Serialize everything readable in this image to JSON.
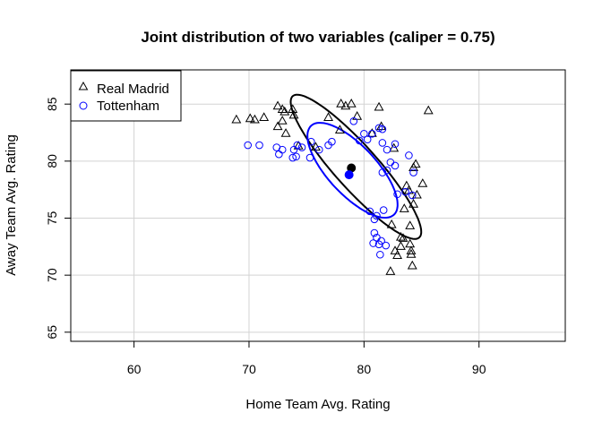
{
  "chart_data": {
    "type": "scatter",
    "title": "Joint distribution of two variables (caliper = 0.75)",
    "xlabel": "Home Team Avg. Rating",
    "ylabel": "Away Team Avg. Rating",
    "xlim": [
      54.5,
      97.5
    ],
    "ylim": [
      64.2,
      88.0
    ],
    "xticks": [
      60,
      70,
      80,
      90
    ],
    "yticks": [
      65,
      70,
      75,
      80,
      85
    ],
    "grid": true,
    "legend_position": "top-left",
    "series": [
      {
        "name": "Real Madrid",
        "marker": "triangle",
        "color": "#000000",
        "points": [
          [
            68.9,
            83.6
          ],
          [
            70.1,
            83.7
          ],
          [
            70.5,
            83.6
          ],
          [
            71.3,
            83.8
          ],
          [
            72.5,
            84.8
          ],
          [
            72.9,
            84.5
          ],
          [
            73.1,
            84.3
          ],
          [
            72.5,
            83.0
          ],
          [
            72.9,
            83.5
          ],
          [
            73.2,
            82.4
          ],
          [
            73.8,
            84.5
          ],
          [
            73.9,
            84.0
          ],
          [
            74.3,
            81.3
          ],
          [
            75.8,
            81.2
          ],
          [
            76.9,
            83.8
          ],
          [
            77.9,
            82.7
          ],
          [
            78.0,
            85.0
          ],
          [
            78.4,
            84.8
          ],
          [
            78.9,
            85.0
          ],
          [
            79.4,
            83.9
          ],
          [
            80.7,
            82.4
          ],
          [
            81.3,
            84.7
          ],
          [
            81.5,
            83.0
          ],
          [
            82.6,
            81.1
          ],
          [
            82.4,
            74.4
          ],
          [
            82.9,
            71.7
          ],
          [
            83.2,
            73.3
          ],
          [
            83.5,
            75.8
          ],
          [
            83.7,
            77.8
          ],
          [
            83.9,
            77.4
          ],
          [
            84.0,
            72.7
          ],
          [
            84.1,
            71.8
          ],
          [
            84.0,
            74.3
          ],
          [
            84.2,
            70.8
          ],
          [
            84.3,
            79.4
          ],
          [
            84.5,
            79.7
          ],
          [
            84.6,
            77.0
          ],
          [
            85.1,
            78.0
          ],
          [
            85.6,
            84.4
          ],
          [
            82.3,
            70.3
          ],
          [
            84.3,
            76.2
          ],
          [
            83.4,
            73.2
          ],
          [
            84.1,
            72.1
          ],
          [
            82.7,
            72.1
          ],
          [
            83.2,
            72.5
          ]
        ]
      },
      {
        "name": "Tottenham",
        "marker": "circle",
        "color": "#0000ff",
        "points": [
          [
            69.9,
            81.4
          ],
          [
            70.9,
            81.4
          ],
          [
            72.4,
            81.2
          ],
          [
            72.6,
            80.6
          ],
          [
            72.9,
            81.0
          ],
          [
            73.8,
            80.3
          ],
          [
            73.9,
            81.0
          ],
          [
            74.1,
            80.4
          ],
          [
            74.2,
            81.4
          ],
          [
            74.6,
            81.2
          ],
          [
            75.3,
            80.3
          ],
          [
            75.4,
            81.7
          ],
          [
            76.1,
            81.0
          ],
          [
            76.9,
            81.4
          ],
          [
            77.2,
            81.7
          ],
          [
            79.1,
            83.5
          ],
          [
            79.6,
            81.8
          ],
          [
            80.0,
            82.4
          ],
          [
            80.3,
            81.9
          ],
          [
            80.7,
            82.4
          ],
          [
            81.3,
            82.9
          ],
          [
            81.6,
            82.8
          ],
          [
            81.6,
            81.6
          ],
          [
            82.0,
            81.0
          ],
          [
            82.3,
            79.9
          ],
          [
            82.7,
            81.5
          ],
          [
            83.9,
            80.5
          ],
          [
            82.7,
            79.6
          ],
          [
            81.6,
            79.0
          ],
          [
            82.0,
            79.2
          ],
          [
            82.9,
            77.1
          ],
          [
            83.6,
            77.3
          ],
          [
            84.2,
            77.0
          ],
          [
            84.3,
            79.0
          ],
          [
            80.5,
            75.6
          ],
          [
            80.9,
            74.9
          ],
          [
            81.1,
            75.2
          ],
          [
            81.7,
            75.7
          ],
          [
            80.9,
            73.7
          ],
          [
            81.1,
            73.3
          ],
          [
            80.8,
            72.8
          ],
          [
            81.3,
            72.7
          ],
          [
            81.5,
            73.0
          ],
          [
            81.9,
            72.6
          ],
          [
            81.4,
            71.8
          ]
        ]
      }
    ],
    "means": [
      {
        "series": "Real Madrid",
        "x": 78.9,
        "y": 79.4,
        "color": "#000000"
      },
      {
        "series": "Tottenham",
        "x": 78.7,
        "y": 78.8,
        "color": "#0000ff"
      }
    ],
    "ellipses": [
      {
        "series": "Real Madrid",
        "color": "#000000",
        "center": [
          79.3,
          79.5
        ],
        "semi_axis_major": [
          5.5,
          -6.2
        ],
        "semi_axis_minor": [
          1.4,
          1.25
        ]
      },
      {
        "series": "Tottenham",
        "color": "#0000ff",
        "center": [
          79.0,
          79.2
        ],
        "semi_axis_major": [
          3.6,
          -3.9
        ],
        "semi_axis_minor": [
          1.55,
          1.45
        ]
      }
    ]
  }
}
